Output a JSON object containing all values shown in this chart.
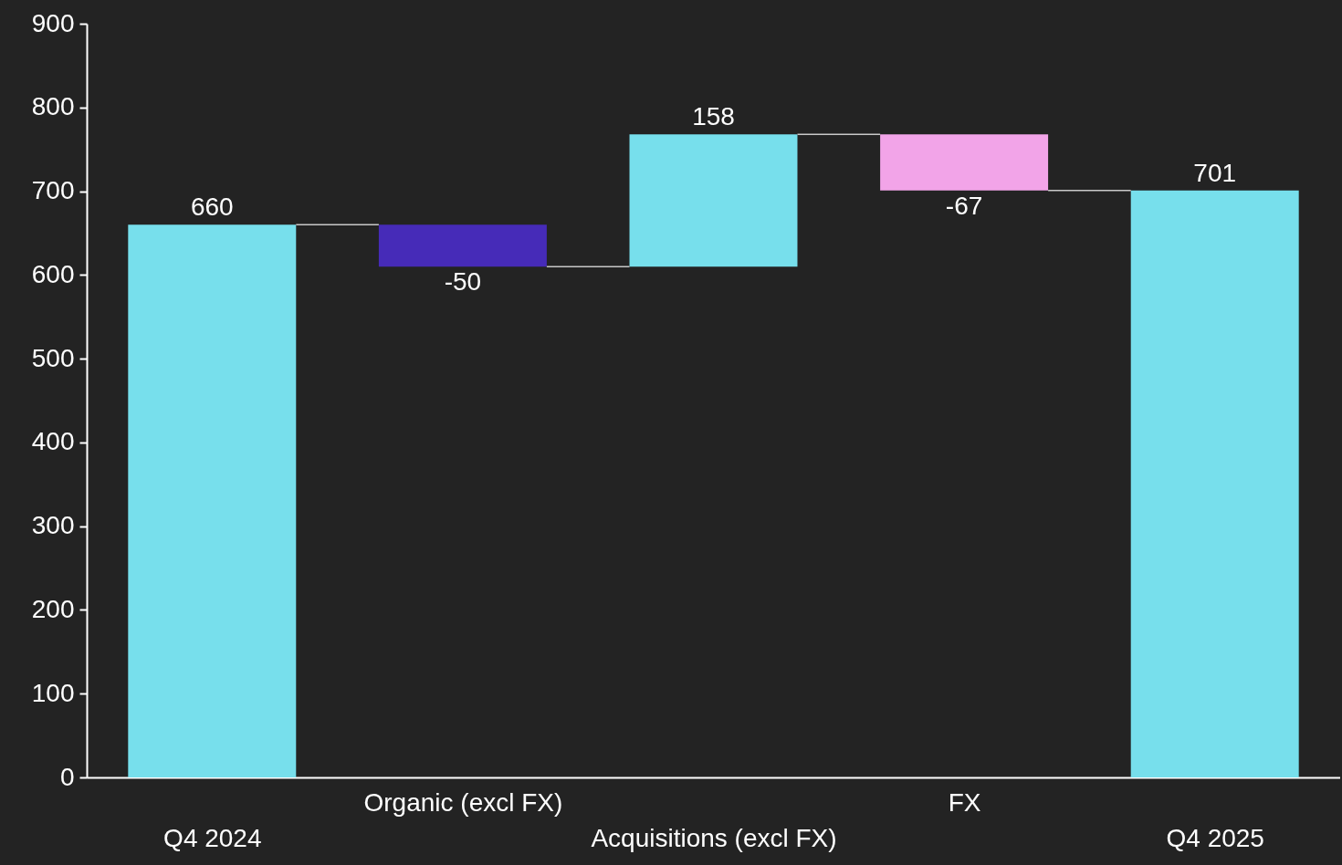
{
  "chart_data": {
    "type": "bar",
    "categories": [
      "Q4 2024",
      "Organic (excl FX)",
      "Acquisitions (excl FX)",
      "FX",
      "Q4 2025"
    ],
    "values": [
      660,
      -50,
      158,
      -67,
      701
    ],
    "base": [
      0,
      660,
      610,
      768,
      0
    ],
    "colors": [
      "#77dfec",
      "#462bb8",
      "#77dfec",
      "#f2a4e8",
      "#77dfec"
    ],
    "ylim": [
      0,
      900
    ],
    "yticks": [
      0,
      100,
      200,
      300,
      400,
      500,
      600,
      700,
      800,
      900
    ],
    "data_labels": true,
    "grid": false
  }
}
